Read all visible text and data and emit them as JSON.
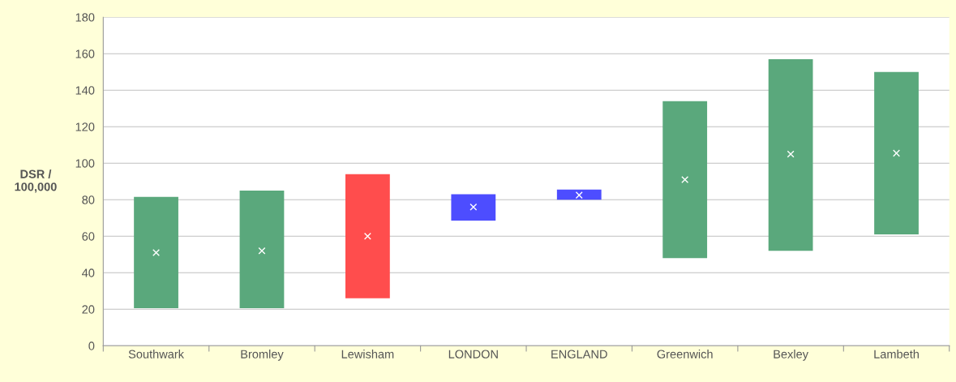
{
  "chart_data": {
    "type": "bar",
    "ylabel": "DSR /\n100,000",
    "categories": [
      "Southwark",
      "Bromley",
      "Lewisham",
      "LONDON",
      "ENGLAND",
      "Greenwich",
      "Bexley",
      "Lambeth"
    ],
    "series": [
      {
        "base": [
          20.5,
          20.5,
          26,
          68.5,
          80,
          48,
          52,
          61
        ],
        "values": [
          61,
          64.5,
          68,
          14.5,
          5.5,
          86,
          105,
          89
        ],
        "colors": [
          "#5aa87c",
          "#5aa87c",
          "#ff4d4d",
          "#4d4dff",
          "#4d4dff",
          "#5aa87c",
          "#5aa87c",
          "#5aa87c"
        ]
      },
      {
        "type": "scatter",
        "values": [
          51,
          52,
          60,
          76,
          82.5,
          91,
          105,
          105.5
        ],
        "color": "#ffffff",
        "marker": "cross"
      }
    ],
    "ylim": [
      0,
      180
    ],
    "yticks": [
      0,
      20,
      40,
      60,
      80,
      100,
      120,
      140,
      160,
      180
    ],
    "grid": "y"
  }
}
